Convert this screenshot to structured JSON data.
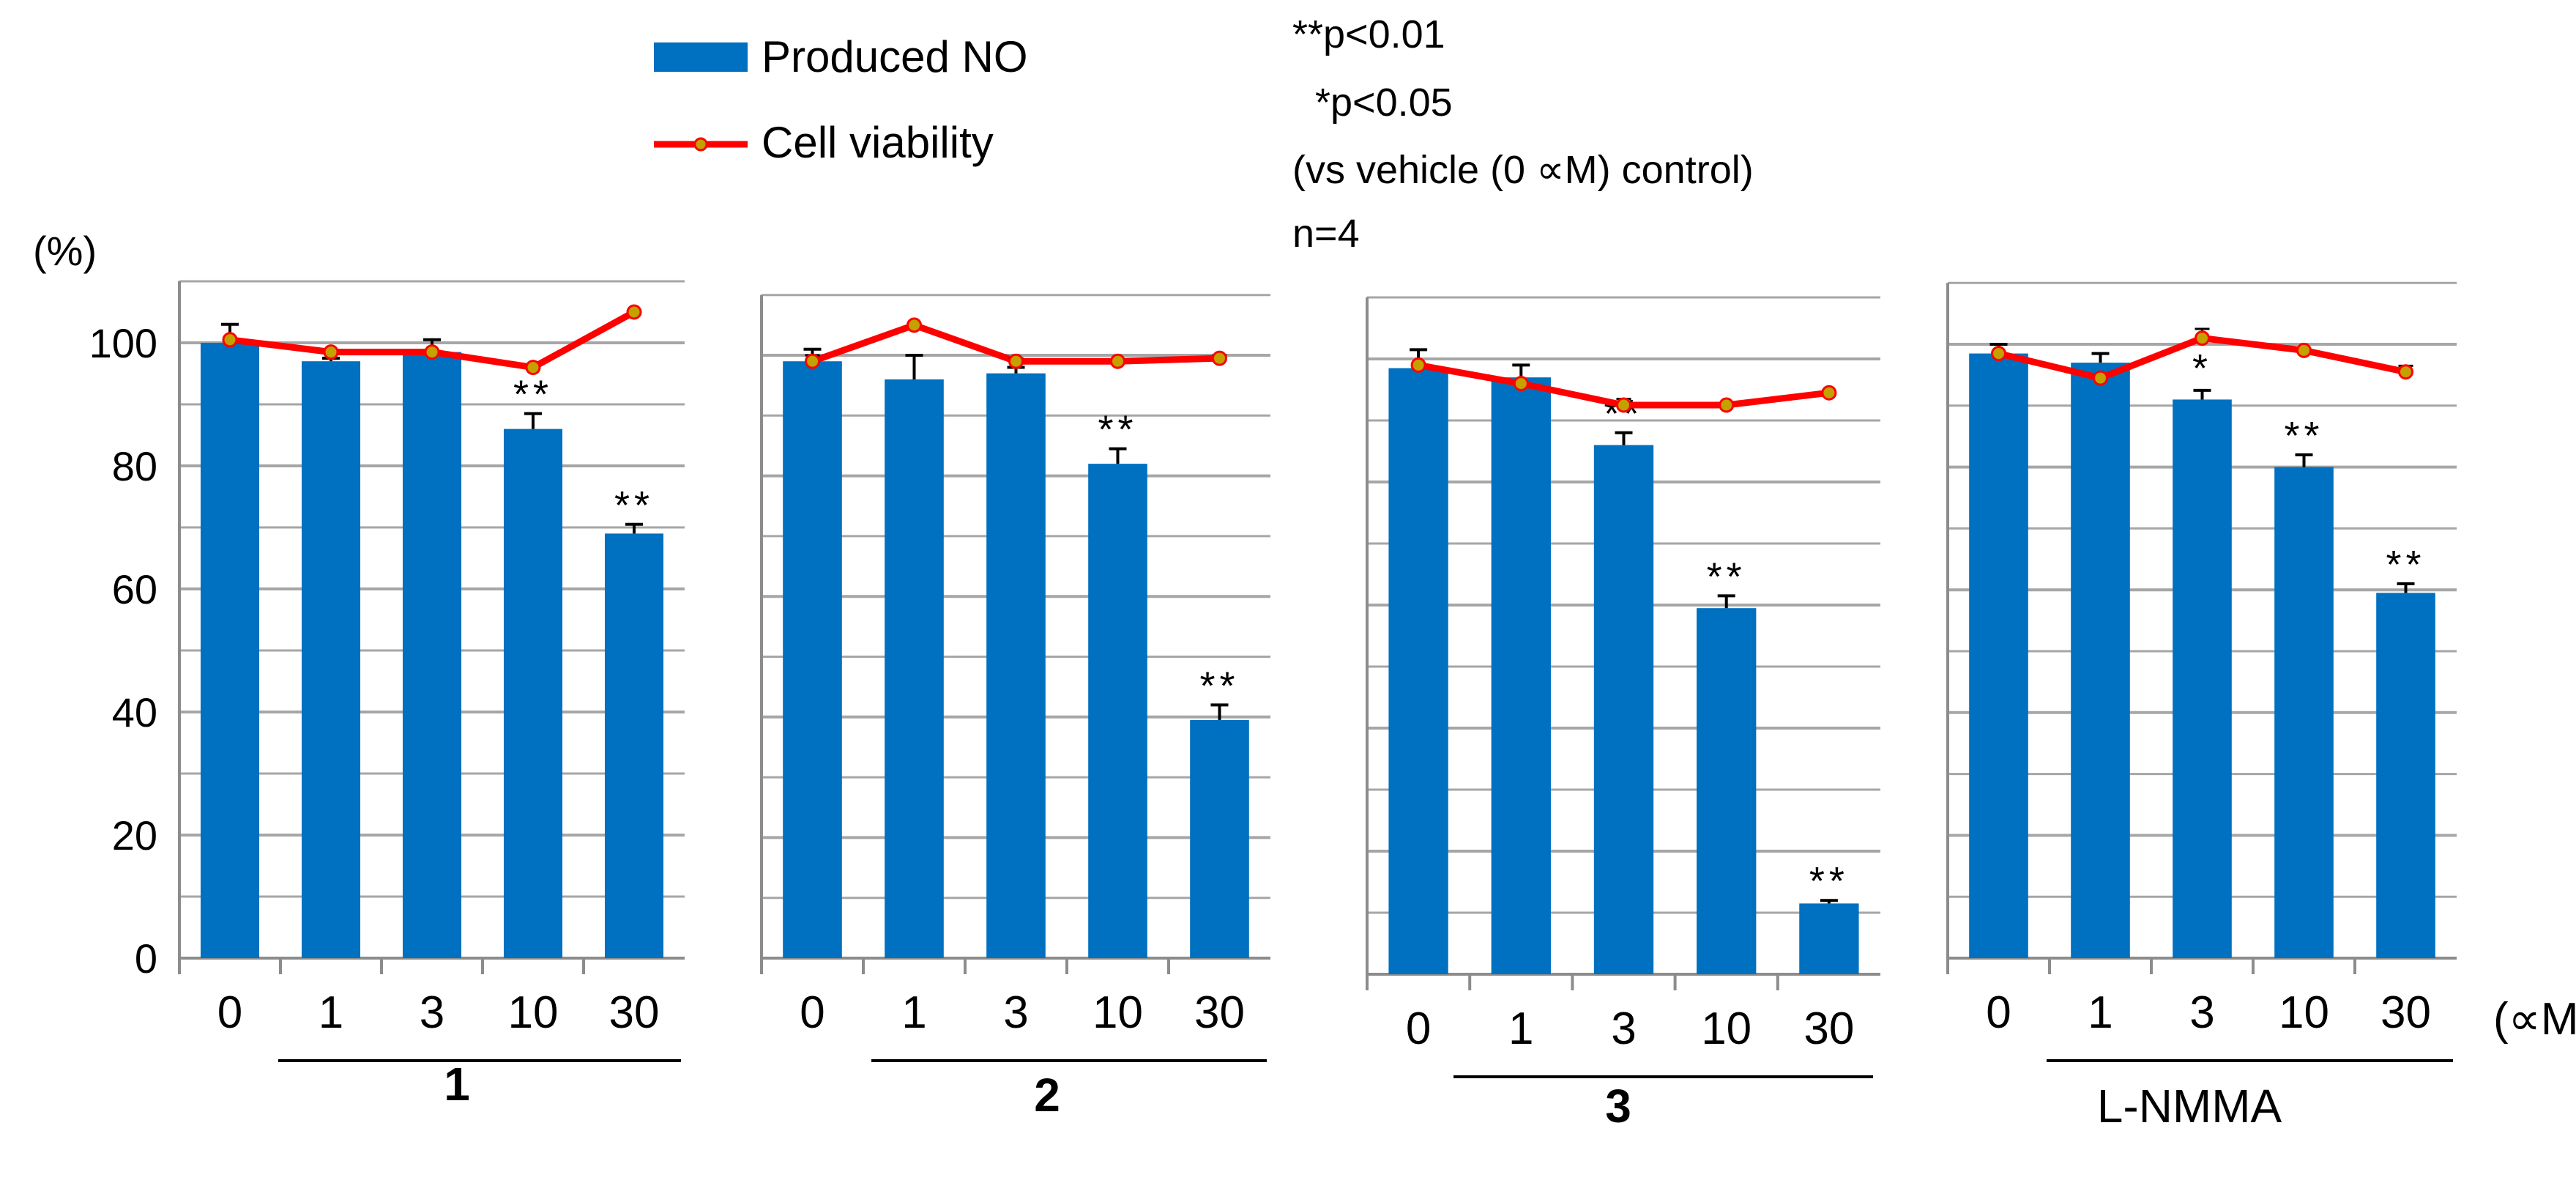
{
  "legend": {
    "bar_label": "Produced NO",
    "line_label": "Cell viability"
  },
  "notes": {
    "p_double": "**p<0.01",
    "p_single": "*p<0.05",
    "vs_control": "(vs vehicle (0 ∝M) control)",
    "n": "n=4"
  },
  "y_unit": "(%)",
  "x_unit": "(∝M)",
  "colors": {
    "bar": "#0070c0",
    "line": "#ff0000",
    "marker": "#c4a000",
    "grid": "#a6a6a6"
  },
  "chart_data": [
    {
      "type": "bar",
      "group_label": "1",
      "categories": [
        "0",
        "1",
        "3",
        "10",
        "30"
      ],
      "ylim": [
        0,
        110
      ],
      "yticks": [
        "0",
        "20",
        "40",
        "60",
        "80",
        "100"
      ],
      "series": [
        {
          "name": "Produced NO",
          "values": [
            100,
            97,
            98.5,
            86,
            69
          ],
          "errors": [
            3,
            0.5,
            2,
            2.5,
            1.5
          ],
          "significance": [
            "",
            "",
            "",
            "**",
            "**"
          ]
        },
        {
          "name": "Cell viability",
          "kind": "line",
          "values": [
            100.5,
            98.5,
            98.5,
            96,
            105
          ],
          "errors": [
            0,
            0,
            0,
            0,
            0
          ]
        }
      ]
    },
    {
      "type": "bar",
      "group_label": "2",
      "categories": [
        "0",
        "1",
        "3",
        "10",
        "30"
      ],
      "ylim": [
        0,
        110
      ],
      "series": [
        {
          "name": "Produced NO",
          "values": [
            99,
            96,
            97,
            82,
            39.5
          ],
          "errors": [
            2,
            4,
            1,
            2.5,
            2.5
          ],
          "significance": [
            "",
            "",
            "",
            "**",
            "**"
          ]
        },
        {
          "name": "Cell viability",
          "kind": "line",
          "values": [
            99,
            105,
            99,
            99,
            99.5
          ],
          "errors": [
            1,
            0,
            0.5,
            0,
            0.5
          ]
        }
      ]
    },
    {
      "type": "bar",
      "group_label": "3",
      "categories": [
        "0",
        "1",
        "3",
        "10",
        "30"
      ],
      "ylim": [
        0,
        110
      ],
      "series": [
        {
          "name": "Produced NO",
          "values": [
            98.5,
            97,
            86,
            59.5,
            11.5
          ],
          "errors": [
            3,
            2,
            2,
            2,
            0.5
          ],
          "significance": [
            "",
            "",
            "**",
            "**",
            "**"
          ]
        },
        {
          "name": "Cell viability",
          "kind": "line",
          "values": [
            99,
            96,
            92.5,
            92.5,
            94.5
          ],
          "errors": [
            0,
            0,
            1,
            0,
            0
          ]
        }
      ]
    },
    {
      "type": "bar",
      "group_label": "L-NMMA",
      "categories": [
        "0",
        "1",
        "3",
        "10",
        "30"
      ],
      "ylim": [
        0,
        110
      ],
      "series": [
        {
          "name": "Produced NO",
          "values": [
            98.5,
            97,
            91,
            80,
            59.5
          ],
          "errors": [
            1.5,
            1.5,
            1.5,
            2,
            1.5
          ],
          "significance": [
            "",
            "",
            "*",
            "**",
            "**"
          ]
        },
        {
          "name": "Cell viability",
          "kind": "line",
          "values": [
            98.5,
            94.5,
            101,
            99,
            95.5
          ],
          "errors": [
            0,
            0,
            1.5,
            0,
            1
          ]
        }
      ]
    }
  ]
}
